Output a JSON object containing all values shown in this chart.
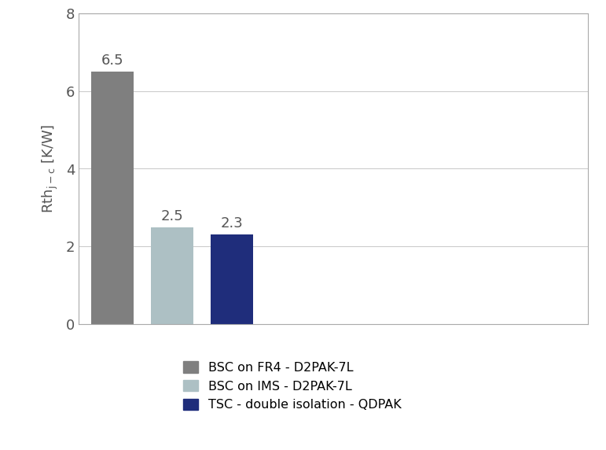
{
  "categories": [
    "BSC on FR4 - D2PAK-7L",
    "BSC on IMS - D2PAK-7L",
    "TSC - double isolation - QDPAK"
  ],
  "values": [
    6.5,
    2.5,
    2.3
  ],
  "bar_colors": [
    "#7f7f7f",
    "#adc0c4",
    "#1f2d7b"
  ],
  "bar_labels": [
    "6.5",
    "2.5",
    "2.3"
  ],
  "ylabel": "Rth$_\\mathregular{j-c}$ [K/W]",
  "ylim": [
    0,
    8
  ],
  "yticks": [
    0,
    2,
    4,
    6,
    8
  ],
  "legend_labels": [
    "BSC on FR4 - D2PAK-7L",
    "BSC on IMS - D2PAK-7L",
    "TSC - double isolation - QDPAK"
  ],
  "legend_colors": [
    "#7f7f7f",
    "#adc0c4",
    "#1f2d7b"
  ],
  "label_fontsize": 13,
  "tick_fontsize": 13,
  "value_label_fontsize": 13,
  "background_color": "#ffffff",
  "grid_color": "#cccccc",
  "bar_width": 0.25,
  "x_positions": [
    0.2,
    0.55,
    0.9
  ],
  "xlim": [
    0.0,
    3.0
  ]
}
